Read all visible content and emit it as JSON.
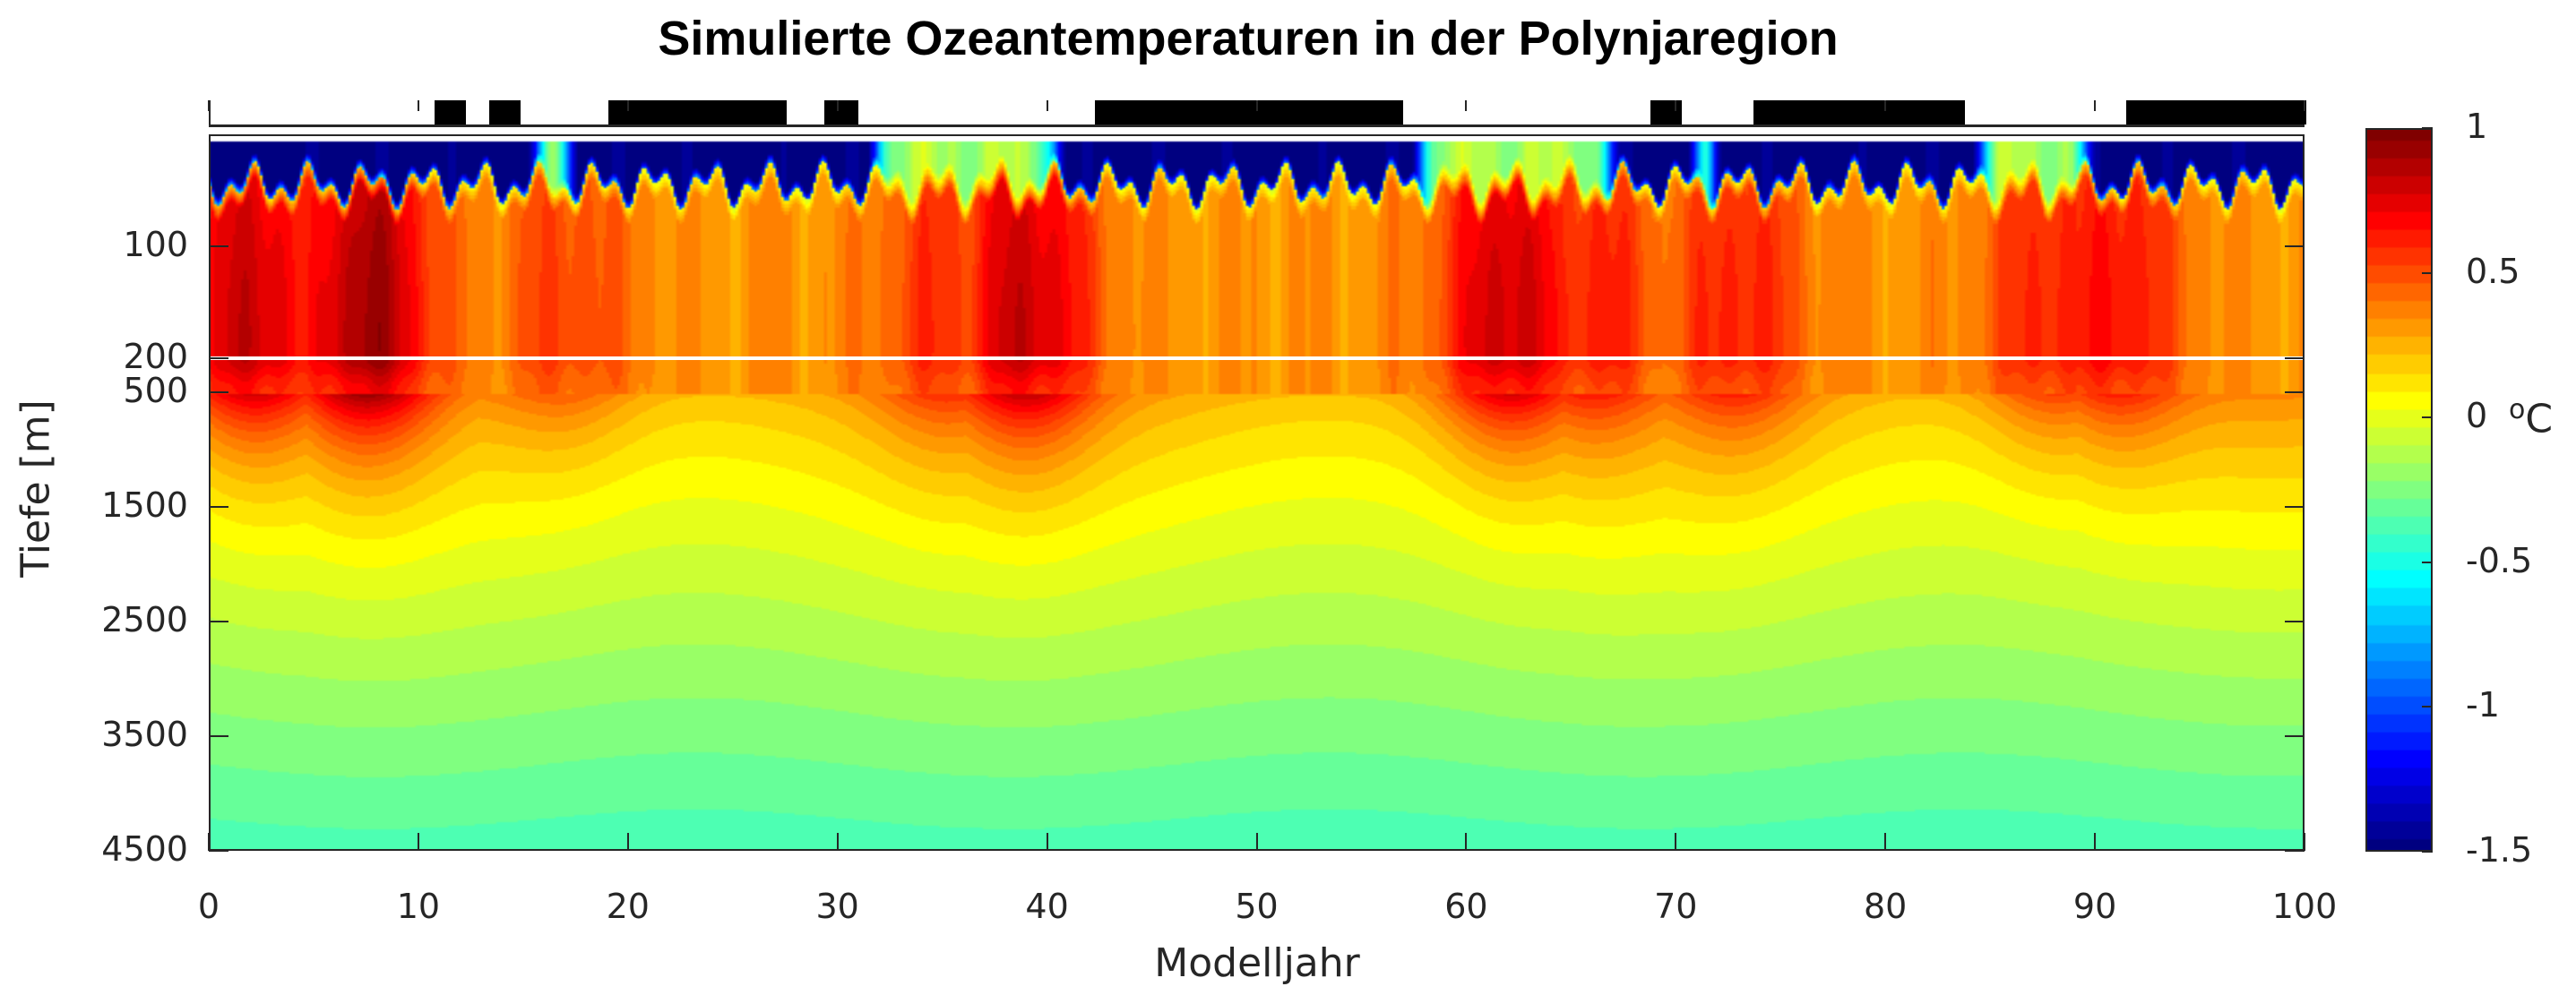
{
  "chart_data": {
    "type": "heatmap",
    "title": "Simulierte Ozeantemperaturen in der Polynjaregion",
    "xlabel": "Modelljahr",
    "ylabel": "Tiefe [m]",
    "xlim": [
      0,
      100
    ],
    "x_ticks": [
      "0",
      "10",
      "20",
      "30",
      "40",
      "50",
      "60",
      "70",
      "80",
      "90",
      "100"
    ],
    "y_upper_range_m": [
      0,
      200
    ],
    "y_lower_range_m": [
      500,
      4500
    ],
    "y_ticks": [
      {
        "value": 100,
        "label": "100"
      },
      {
        "value": 200,
        "label": "200"
      },
      {
        "value": 500,
        "label": "500"
      },
      {
        "value": 1500,
        "label": "1500"
      },
      {
        "value": 2500,
        "label": "2500"
      },
      {
        "value": 3500,
        "label": "3500"
      },
      {
        "value": 4500,
        "label": "4500"
      }
    ],
    "colorbar": {
      "label_sup": "o",
      "label": "C",
      "range": [
        -1.5,
        1
      ],
      "ticks": [
        "1",
        "0.5",
        "0",
        "-0.5",
        "-1",
        "-1.5"
      ],
      "colormap": "jet"
    },
    "polynya_periods_years": [
      [
        10.7,
        12.2
      ],
      [
        13.3,
        14.8
      ],
      [
        19.0,
        27.5
      ],
      [
        29.3,
        30.9
      ],
      [
        42.2,
        56.9
      ],
      [
        68.7,
        70.2
      ],
      [
        73.6,
        83.7
      ],
      [
        91.4,
        100
      ]
    ],
    "warm_cores": [
      {
        "year": 2,
        "temp": 0.85
      },
      {
        "year": 7.5,
        "temp": 0.95
      },
      {
        "year": 17,
        "temp": 0.55
      },
      {
        "year": 35,
        "temp": 0.6
      },
      {
        "year": 39,
        "temp": 0.85
      },
      {
        "year": 62,
        "temp": 0.85
      },
      {
        "year": 66,
        "temp": 0.65
      },
      {
        "year": 73,
        "temp": 0.65
      },
      {
        "year": 88,
        "temp": 0.65
      },
      {
        "year": 91,
        "temp": 0.7
      }
    ]
  }
}
